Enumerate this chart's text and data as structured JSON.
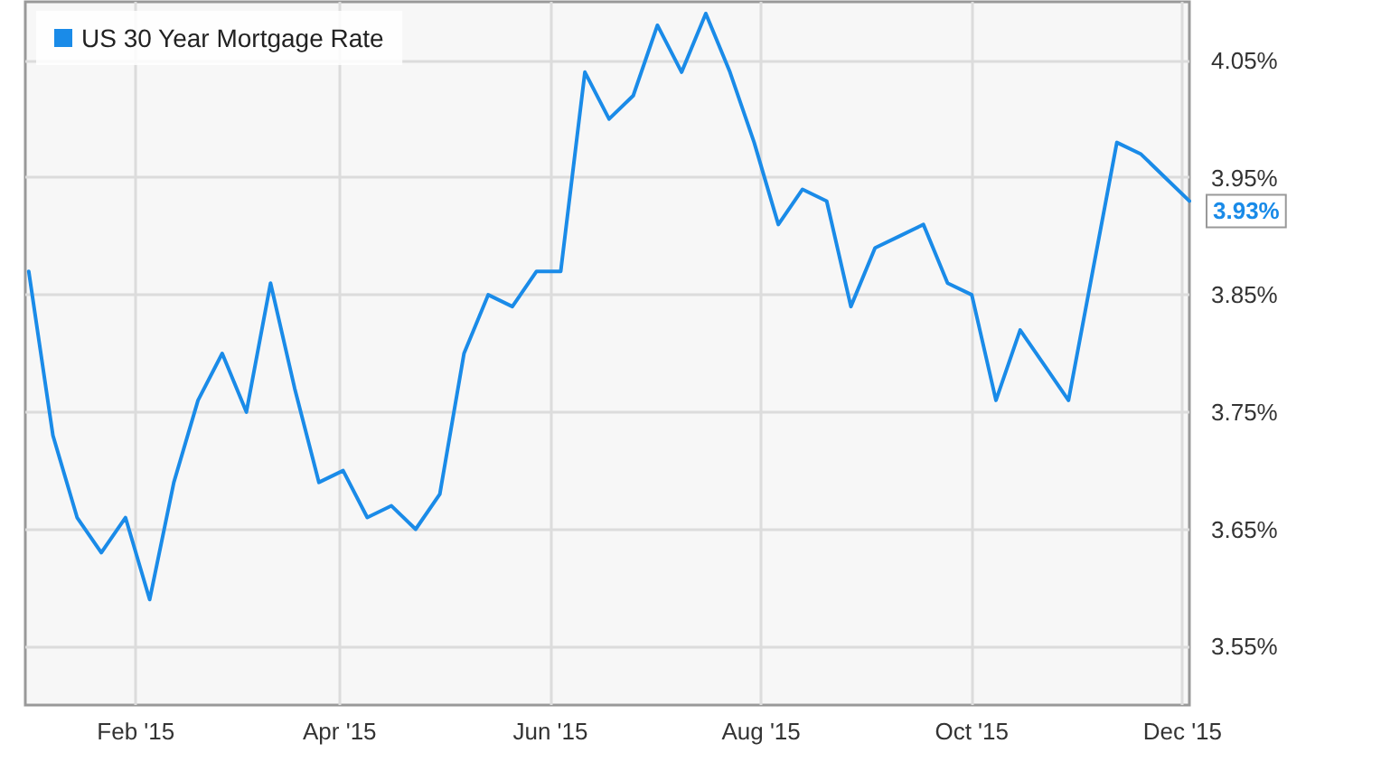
{
  "chart_data": {
    "type": "line",
    "x": [
      "2015-01-01",
      "2015-01-08",
      "2015-01-15",
      "2015-01-22",
      "2015-01-29",
      "2015-02-05",
      "2015-02-12",
      "2015-02-19",
      "2015-02-26",
      "2015-03-05",
      "2015-03-12",
      "2015-03-19",
      "2015-03-26",
      "2015-04-02",
      "2015-04-09",
      "2015-04-16",
      "2015-04-23",
      "2015-04-30",
      "2015-05-07",
      "2015-05-14",
      "2015-05-21",
      "2015-05-28",
      "2015-06-04",
      "2015-06-11",
      "2015-06-18",
      "2015-06-25",
      "2015-07-02",
      "2015-07-09",
      "2015-07-16",
      "2015-07-23",
      "2015-07-30",
      "2015-08-06",
      "2015-08-13",
      "2015-08-20",
      "2015-08-27",
      "2015-09-03",
      "2015-09-10",
      "2015-09-17",
      "2015-09-24",
      "2015-10-01",
      "2015-10-08",
      "2015-10-15",
      "2015-10-22",
      "2015-10-29",
      "2015-11-05",
      "2015-11-12",
      "2015-11-19",
      "2015-11-26",
      "2015-12-03"
    ],
    "series": [
      {
        "name": "US 30 Year Mortgage Rate",
        "color": "#1a8be8",
        "values": [
          3.87,
          3.73,
          3.66,
          3.63,
          3.66,
          3.59,
          3.69,
          3.76,
          3.8,
          3.75,
          3.86,
          3.77,
          3.69,
          3.7,
          3.66,
          3.67,
          3.65,
          3.68,
          3.8,
          3.85,
          3.84,
          3.87,
          3.87,
          4.04,
          4.0,
          4.02,
          4.08,
          4.04,
          4.09,
          4.04,
          3.98,
          3.91,
          3.94,
          3.93,
          3.84,
          3.89,
          3.9,
          3.91,
          3.86,
          3.85,
          3.76,
          3.82,
          3.79,
          3.76,
          3.87,
          3.98,
          3.97,
          3.95,
          3.93
        ]
      }
    ],
    "xlim": [
      "2014-12-31",
      "2015-12-03"
    ],
    "xticks": [
      {
        "value": "2015-02-01",
        "label": "Feb '15"
      },
      {
        "value": "2015-04-01",
        "label": "Apr '15"
      },
      {
        "value": "2015-06-01",
        "label": "Jun '15"
      },
      {
        "value": "2015-08-01",
        "label": "Aug '15"
      },
      {
        "value": "2015-10-01",
        "label": "Oct '15"
      },
      {
        "value": "2015-12-01",
        "label": "Dec '15"
      }
    ],
    "ylim": [
      3.5,
      4.1
    ],
    "yticks": [
      {
        "value": 3.55,
        "label": "3.55%"
      },
      {
        "value": 3.65,
        "label": "3.65%"
      },
      {
        "value": 3.75,
        "label": "3.75%"
      },
      {
        "value": 3.85,
        "label": "3.85%"
      },
      {
        "value": 3.95,
        "label": "3.95%"
      },
      {
        "value": 4.05,
        "label": "4.05%"
      }
    ],
    "annotations": [
      {
        "text": "3.93%",
        "x": "2015-12-03",
        "y": 3.93
      }
    ],
    "grid": true,
    "legend": "top left",
    "marker": "none",
    "line_style": "solid"
  }
}
